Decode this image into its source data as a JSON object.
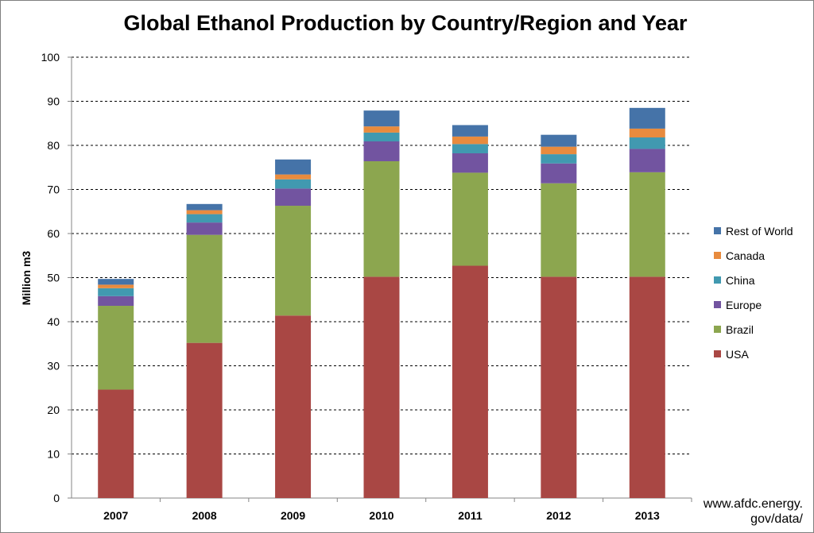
{
  "chart_data": {
    "type": "bar",
    "stacked": true,
    "title": "Global Ethanol Production by Country/Region and Year",
    "ylabel": "Million m3",
    "xlabel": "",
    "ylim": [
      0,
      100
    ],
    "yticks": [
      0,
      10,
      20,
      30,
      40,
      50,
      60,
      70,
      80,
      90,
      100
    ],
    "grid": true,
    "legend_position": "right",
    "categories": [
      "2007",
      "2008",
      "2009",
      "2010",
      "2011",
      "2012",
      "2013"
    ],
    "series": [
      {
        "name": "USA",
        "color": "#A94744",
        "values": [
          24.6,
          35.2,
          41.4,
          50.2,
          52.7,
          50.2,
          50.2
        ]
      },
      {
        "name": "Brazil",
        "color": "#8CA64F",
        "values": [
          19.0,
          24.5,
          24.9,
          26.2,
          21.1,
          21.2,
          23.7
        ]
      },
      {
        "name": "Europe",
        "color": "#7254A0",
        "values": [
          2.2,
          2.8,
          3.9,
          4.5,
          4.4,
          4.5,
          5.3
        ]
      },
      {
        "name": "China",
        "color": "#4199B0",
        "values": [
          1.8,
          1.9,
          2.1,
          2.0,
          2.1,
          2.1,
          2.6
        ]
      },
      {
        "name": "Canada",
        "color": "#E88B3E",
        "values": [
          0.8,
          0.9,
          1.1,
          1.4,
          1.7,
          1.7,
          2.0
        ]
      },
      {
        "name": "Rest of World",
        "color": "#4573A8",
        "values": [
          1.3,
          1.4,
          3.4,
          3.6,
          2.6,
          2.7,
          4.7
        ]
      }
    ]
  },
  "source_line1": "www.afdc.energy.",
  "source_line2": "gov/data/"
}
